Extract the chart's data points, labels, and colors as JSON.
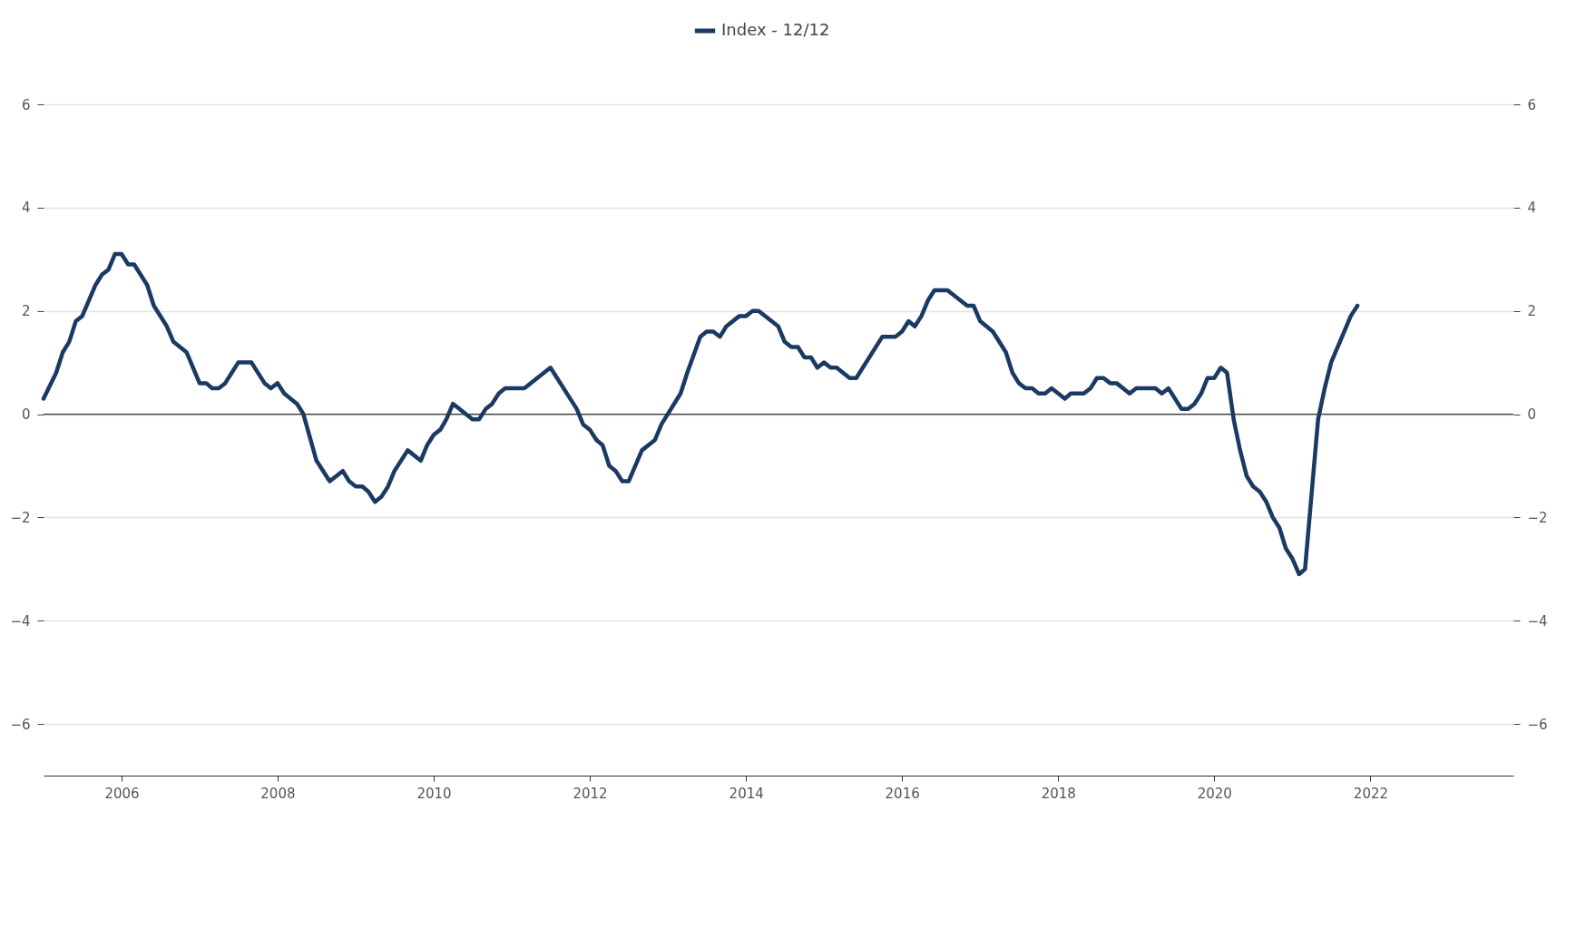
{
  "chart_data": {
    "type": "line",
    "x": [
      "2005-01",
      "2005-03",
      "2005-04",
      "2005-05",
      "2005-06",
      "2005-07",
      "2005-09",
      "2005-10",
      "2005-11",
      "2005-12",
      "2006-01",
      "2006-02",
      "2006-03",
      "2006-05",
      "2006-06",
      "2006-08",
      "2006-09",
      "2006-11",
      "2007-01",
      "2007-02",
      "2007-03",
      "2007-04",
      "2007-05",
      "2007-07",
      "2007-09",
      "2007-11",
      "2007-12",
      "2008-01",
      "2008-02",
      "2008-04",
      "2008-05",
      "2008-07",
      "2008-09",
      "2008-11",
      "2008-12",
      "2009-01",
      "2009-02",
      "2009-03",
      "2009-04",
      "2009-05",
      "2009-06",
      "2009-07",
      "2009-09",
      "2009-11",
      "2009-12",
      "2010-01",
      "2010-02",
      "2010-03",
      "2010-04",
      "2010-07",
      "2010-08",
      "2010-09",
      "2010-10",
      "2010-11",
      "2010-12",
      "2011-03",
      "2011-07",
      "2011-11",
      "2011-12",
      "2012-01",
      "2012-02",
      "2012-03",
      "2012-04",
      "2012-05",
      "2012-06",
      "2012-07",
      "2012-09",
      "2012-11",
      "2012-12",
      "2013-03",
      "2013-04",
      "2013-06",
      "2013-07",
      "2013-08",
      "2013-09",
      "2013-10",
      "2013-12",
      "2014-01",
      "2014-02",
      "2014-03",
      "2014-06",
      "2014-07",
      "2014-08",
      "2014-09",
      "2014-10",
      "2014-11",
      "2014-12",
      "2015-01",
      "2015-02",
      "2015-03",
      "2015-05",
      "2015-06",
      "2015-10",
      "2015-12",
      "2016-01",
      "2016-02",
      "2016-03",
      "2016-04",
      "2016-05",
      "2016-06",
      "2016-08",
      "2016-11",
      "2016-12",
      "2017-01",
      "2017-03",
      "2017-05",
      "2017-06",
      "2017-07",
      "2017-08",
      "2017-09",
      "2017-10",
      "2017-11",
      "2017-12",
      "2018-02",
      "2018-03",
      "2018-05",
      "2018-06",
      "2018-07",
      "2018-08",
      "2018-09",
      "2018-10",
      "2018-12",
      "2019-01",
      "2019-04",
      "2019-05",
      "2019-06",
      "2019-08",
      "2019-09",
      "2019-10",
      "2019-11",
      "2019-12",
      "2020-01",
      "2020-02",
      "2020-03",
      "2020-04",
      "2020-05",
      "2020-06",
      "2020-07",
      "2020-08",
      "2020-09",
      "2020-10",
      "2020-11",
      "2020-12",
      "2021-01",
      "2021-02",
      "2021-03",
      "2021-05",
      "2021-06",
      "2021-07",
      "2021-10",
      "2021-11"
    ],
    "series": [
      {
        "name": "Index - 12/12",
        "color": "#1a3a63",
        "values": [
          0.3,
          0.8,
          1.2,
          1.4,
          1.8,
          1.9,
          2.5,
          2.7,
          2.8,
          3.1,
          3.1,
          2.9,
          2.9,
          2.5,
          2.1,
          1.7,
          1.4,
          1.2,
          0.6,
          0.6,
          0.5,
          0.5,
          0.6,
          1.0,
          1.0,
          0.6,
          0.5,
          0.6,
          0.4,
          0.2,
          0,
          -0.9,
          -1.3,
          -1.1,
          -1.3,
          -1.4,
          -1.4,
          -1.5,
          -1.7,
          -1.6,
          -1.4,
          -1.1,
          -0.7,
          -0.9,
          -0.6,
          -0.4,
          -0.3,
          -0.1,
          0.2,
          -0.1,
          -0.1,
          0.1,
          0.2,
          0.4,
          0.5,
          0.5,
          0.9,
          0.1,
          -0.2,
          -0.3,
          -0.5,
          -0.6,
          -1.0,
          -1.1,
          -1.3,
          -1.3,
          -0.7,
          -0.5,
          -0.2,
          0.4,
          0.8,
          1.5,
          1.6,
          1.6,
          1.5,
          1.7,
          1.9,
          1.9,
          2.0,
          2.0,
          1.7,
          1.4,
          1.3,
          1.3,
          1.1,
          1.1,
          0.9,
          1.0,
          0.9,
          0.9,
          0.7,
          0.7,
          1.5,
          1.5,
          1.6,
          1.8,
          1.7,
          1.9,
          2.2,
          2.4,
          2.4,
          2.1,
          2.1,
          1.8,
          1.6,
          1.2,
          0.8,
          0.6,
          0.5,
          0.5,
          0.4,
          0.4,
          0.5,
          0.3,
          0.4,
          0.4,
          0.5,
          0.7,
          0.7,
          0.6,
          0.6,
          0.4,
          0.5,
          0.5,
          0.4,
          0.5,
          0.1,
          0.1,
          0.2,
          0.4,
          0.7,
          0.7,
          0.9,
          0.8,
          -0.1,
          -0.7,
          -1.2,
          -1.4,
          -1.5,
          -1.7,
          -2.0,
          -2.2,
          -2.6,
          -2.8,
          -3.1,
          -3.0,
          -0.1,
          0.5,
          1.0,
          1.9,
          2.1
        ]
      }
    ],
    "xlim": [
      "2005-01",
      "2023-11"
    ],
    "xticks": [
      "2006",
      "2008",
      "2010",
      "2012",
      "2014",
      "2016",
      "2018",
      "2020",
      "2022"
    ],
    "ylim": [
      -7,
      6
    ],
    "yticks": [
      {
        "value": -6,
        "label": "−6"
      },
      {
        "value": -4,
        "label": "−4"
      },
      {
        "value": -2,
        "label": "−2"
      },
      0,
      2,
      4,
      6
    ],
    "y2lim": [
      -7,
      6
    ],
    "y2ticks": [
      {
        "value": -6,
        "label": "−6"
      },
      {
        "value": -4,
        "label": "−4"
      },
      {
        "value": -2,
        "label": "−2"
      },
      0,
      2,
      4,
      6
    ],
    "ref_lines": [
      {
        "axis": "y",
        "value": 0,
        "color": "#333333"
      }
    ],
    "grid": "y",
    "legend": "top",
    "line_style": "solid",
    "marker": "none"
  }
}
